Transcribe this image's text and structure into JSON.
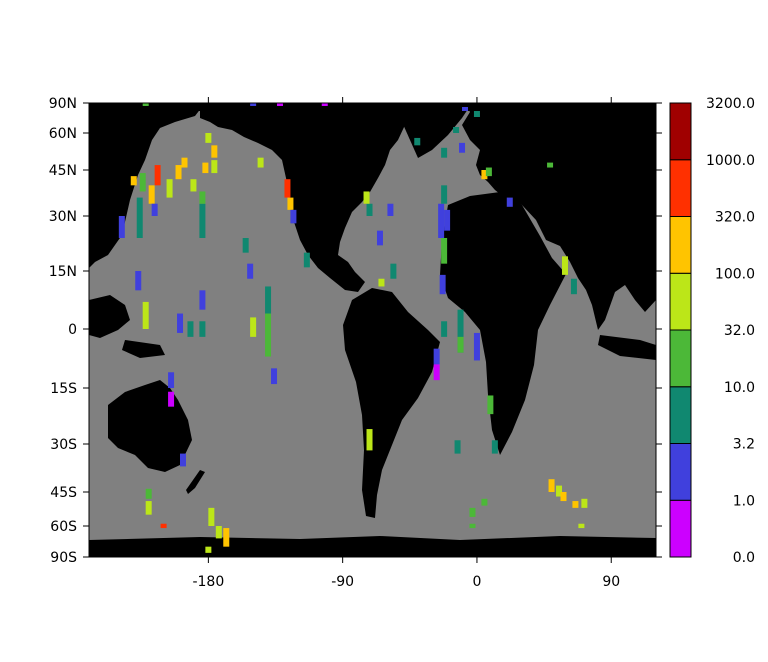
{
  "chart_data": {
    "type": "heatmap",
    "subtype": "global-map-gridded-markers",
    "title": "",
    "xlabel": "",
    "ylabel": "",
    "xlim": [
      -260,
      120
    ],
    "ylim": [
      -90,
      90
    ],
    "x_ticks": [
      {
        "value": -180,
        "label": "-180"
      },
      {
        "value": -90,
        "label": "-90"
      },
      {
        "value": 0,
        "label": "0"
      },
      {
        "value": 90,
        "label": "90"
      }
    ],
    "y_ticks": [
      {
        "value": 90,
        "label": "90N"
      },
      {
        "value": 60,
        "label": "60N"
      },
      {
        "value": 45,
        "label": "45N"
      },
      {
        "value": 30,
        "label": "30N"
      },
      {
        "value": 15,
        "label": "15N"
      },
      {
        "value": 0,
        "label": "0"
      },
      {
        "value": -15,
        "label": "15S"
      },
      {
        "value": -30,
        "label": "30S"
      },
      {
        "value": -45,
        "label": "45S"
      },
      {
        "value": -60,
        "label": "60S"
      },
      {
        "value": -90,
        "label": "90S"
      }
    ],
    "colors": {
      "ocean": "#808080",
      "land": "#000000"
    },
    "colorbar": {
      "labels": [
        "0.0",
        "1.0",
        "3.2",
        "10.0",
        "32.0",
        "100.0",
        "320.0",
        "1000.0",
        "3200.0"
      ],
      "colors": [
        "#cc00ff",
        "#4040dd",
        "#108870",
        "#4cb838",
        "#bce618",
        "#ffc400",
        "#ff3000",
        "#a00000"
      ]
    },
    "markers": [
      {
        "lon": -227,
        "lat": [
          10,
          15
        ],
        "class": 1
      },
      {
        "lon": -222,
        "lat": [
          0,
          7
        ],
        "class": 4
      },
      {
        "lon": -199,
        "lat": [
          -1,
          4
        ],
        "class": 1
      },
      {
        "lon": -192,
        "lat": [
          -2,
          2
        ],
        "class": 2
      },
      {
        "lon": -184,
        "lat": [
          5,
          10
        ],
        "class": 1
      },
      {
        "lon": -184,
        "lat": [
          -2,
          2
        ],
        "class": 2
      },
      {
        "lon": -152,
        "lat": [
          13,
          17
        ],
        "class": 1
      },
      {
        "lon": -150,
        "lat": [
          -2,
          3
        ],
        "class": 4
      },
      {
        "lon": -140,
        "lat": [
          4,
          11
        ],
        "class": 2
      },
      {
        "lon": -140,
        "lat": [
          -7,
          4
        ],
        "class": 3
      },
      {
        "lon": -136,
        "lat": [
          -14,
          -10
        ],
        "class": 1
      },
      {
        "lon": -205,
        "lat": [
          -15,
          -11
        ],
        "class": 1
      },
      {
        "lon": -205,
        "lat": [
          -20,
          -16
        ],
        "class": 0
      },
      {
        "lon": -197,
        "lat": [
          -37,
          -33
        ],
        "class": 1
      },
      {
        "lon": -220,
        "lat": [
          -48,
          -44
        ],
        "class": 3
      },
      {
        "lon": -220,
        "lat": [
          -55,
          -49
        ],
        "class": 4
      },
      {
        "lon": -210,
        "lat": [
          -62,
          -59
        ],
        "class": 6
      },
      {
        "lon": -178,
        "lat": [
          -60,
          -52
        ],
        "class": 4
      },
      {
        "lon": -173,
        "lat": [
          -72,
          -60
        ],
        "class": 4
      },
      {
        "lon": -168,
        "lat": [
          -80,
          -62
        ],
        "class": 5
      },
      {
        "lon": -180,
        "lat": [
          -86,
          -80
        ],
        "class": 4
      },
      {
        "lon": -238,
        "lat": [
          24,
          30
        ],
        "class": 1
      },
      {
        "lon": -226,
        "lat": [
          24,
          36
        ],
        "class": 2
      },
      {
        "lon": -224,
        "lat": [
          38,
          44
        ],
        "class": 3
      },
      {
        "lon": -230,
        "lat": [
          40,
          43
        ],
        "class": 5
      },
      {
        "lon": -218,
        "lat": [
          34,
          40
        ],
        "class": 5
      },
      {
        "lon": -214,
        "lat": [
          40,
          47
        ],
        "class": 6
      },
      {
        "lon": -216,
        "lat": [
          30,
          34
        ],
        "class": 1
      },
      {
        "lon": -206,
        "lat": [
          36,
          42
        ],
        "class": 4
      },
      {
        "lon": -200,
        "lat": [
          42,
          47
        ],
        "class": 5
      },
      {
        "lon": -196,
        "lat": [
          46,
          50
        ],
        "class": 5
      },
      {
        "lon": -190,
        "lat": [
          38,
          42
        ],
        "class": 4
      },
      {
        "lon": -184,
        "lat": [
          24,
          34
        ],
        "class": 2
      },
      {
        "lon": -184,
        "lat": [
          34,
          38
        ],
        "class": 3
      },
      {
        "lon": -182,
        "lat": [
          44,
          48
        ],
        "class": 5
      },
      {
        "lon": -176,
        "lat": [
          50,
          55
        ],
        "class": 5
      },
      {
        "lon": -176,
        "lat": [
          44,
          49
        ],
        "class": 4
      },
      {
        "lon": -180,
        "lat": [
          56,
          60
        ],
        "class": 4
      },
      {
        "lon": -155,
        "lat": [
          20,
          24
        ],
        "class": 2
      },
      {
        "lon": -145,
        "lat": [
          46,
          50
        ],
        "class": 4
      },
      {
        "lon": -114,
        "lat": [
          16,
          20
        ],
        "class": 2
      },
      {
        "lon": -127,
        "lat": [
          36,
          42
        ],
        "class": 6
      },
      {
        "lon": -125,
        "lat": [
          32,
          36
        ],
        "class": 5
      },
      {
        "lon": -123,
        "lat": [
          28,
          32
        ],
        "class": 1
      },
      {
        "lon": -72,
        "lat": [
          30,
          34
        ],
        "class": 2
      },
      {
        "lon": -74,
        "lat": [
          34,
          38
        ],
        "class": 4
      },
      {
        "lon": -65,
        "lat": [
          22,
          26
        ],
        "class": 1
      },
      {
        "lon": -58,
        "lat": [
          30,
          34
        ],
        "class": 1
      },
      {
        "lon": -56,
        "lat": [
          13,
          17
        ],
        "class": 2
      },
      {
        "lon": -64,
        "lat": [
          11,
          13
        ],
        "class": 4
      },
      {
        "lon": -72,
        "lat": [
          -32,
          -26
        ],
        "class": 4
      },
      {
        "lon": -24,
        "lat": [
          24,
          34
        ],
        "class": 1
      },
      {
        "lon": -22,
        "lat": [
          34,
          40
        ],
        "class": 2
      },
      {
        "lon": -22,
        "lat": [
          17,
          24
        ],
        "class": 3
      },
      {
        "lon": -20,
        "lat": [
          26,
          32
        ],
        "class": 1
      },
      {
        "lon": -23,
        "lat": [
          9,
          14
        ],
        "class": 1
      },
      {
        "lon": -22,
        "lat": [
          -2,
          2
        ],
        "class": 2
      },
      {
        "lon": -27,
        "lat": [
          -9,
          -5
        ],
        "class": 1
      },
      {
        "lon": -27,
        "lat": [
          -13,
          -9
        ],
        "class": 0
      },
      {
        "lon": -11,
        "lat": [
          -6,
          5
        ],
        "class": 2
      },
      {
        "lon": -11,
        "lat": [
          -6,
          -2
        ],
        "class": 3
      },
      {
        "lon": 0,
        "lat": [
          -8,
          -1
        ],
        "class": 1
      },
      {
        "lon": -13,
        "lat": [
          -33,
          -29
        ],
        "class": 2
      },
      {
        "lon": 9,
        "lat": [
          -22,
          -17
        ],
        "class": 3
      },
      {
        "lon": 12,
        "lat": [
          -33,
          -29
        ],
        "class": 2
      },
      {
        "lon": -3,
        "lat": [
          -56,
          -52
        ],
        "class": 3
      },
      {
        "lon": -3,
        "lat": [
          -62,
          -59
        ],
        "class": 3
      },
      {
        "lon": 5,
        "lat": [
          -51,
          -48
        ],
        "class": 3
      },
      {
        "lon": 50,
        "lat": [
          -45,
          -41
        ],
        "class": 5
      },
      {
        "lon": 55,
        "lat": [
          -47,
          -43
        ],
        "class": 4
      },
      {
        "lon": 58,
        "lat": [
          -49,
          -45
        ],
        "class": 5
      },
      {
        "lon": 66,
        "lat": [
          -52,
          -49
        ],
        "class": 5
      },
      {
        "lon": 72,
        "lat": [
          -52,
          -48
        ],
        "class": 4
      },
      {
        "lon": 70,
        "lat": [
          -62,
          -59
        ],
        "class": 4
      },
      {
        "lon": 59,
        "lat": [
          14,
          19
        ],
        "class": 4
      },
      {
        "lon": 65,
        "lat": [
          9,
          13
        ],
        "class": 2
      },
      {
        "lon": 49,
        "lat": [
          46,
          48
        ],
        "class": 3
      },
      {
        "lon": -40,
        "lat": [
          55,
          58
        ],
        "class": 2
      },
      {
        "lon": -22,
        "lat": [
          50,
          54
        ],
        "class": 2
      },
      {
        "lon": -14,
        "lat": [
          60,
          66
        ],
        "class": 2
      },
      {
        "lon": -10,
        "lat": [
          52,
          56
        ],
        "class": 1
      },
      {
        "lon": -8,
        "lat": [
          82,
          86
        ],
        "class": 1
      },
      {
        "lon": 0,
        "lat": [
          76,
          82
        ],
        "class": 2
      },
      {
        "lon": 5,
        "lat": [
          42,
          45
        ],
        "class": 5
      },
      {
        "lon": 8,
        "lat": [
          43,
          46
        ],
        "class": 3
      },
      {
        "lon": 22,
        "lat": [
          33,
          36
        ],
        "class": 1
      },
      {
        "lon": -150,
        "lat": [
          88,
          90
        ],
        "class": 1
      },
      {
        "lon": -132,
        "lat": [
          88,
          90
        ],
        "class": 0
      },
      {
        "lon": -102,
        "lat": [
          87,
          90
        ],
        "class": 0
      },
      {
        "lon": -222,
        "lat": [
          88,
          90
        ],
        "class": 3
      }
    ]
  }
}
